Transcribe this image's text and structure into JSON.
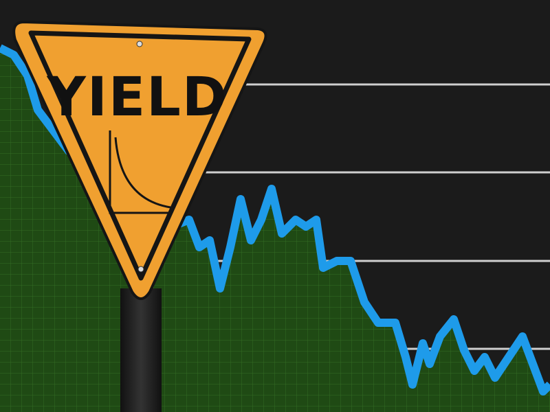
{
  "sign": {
    "text": "YIELD"
  }
}
